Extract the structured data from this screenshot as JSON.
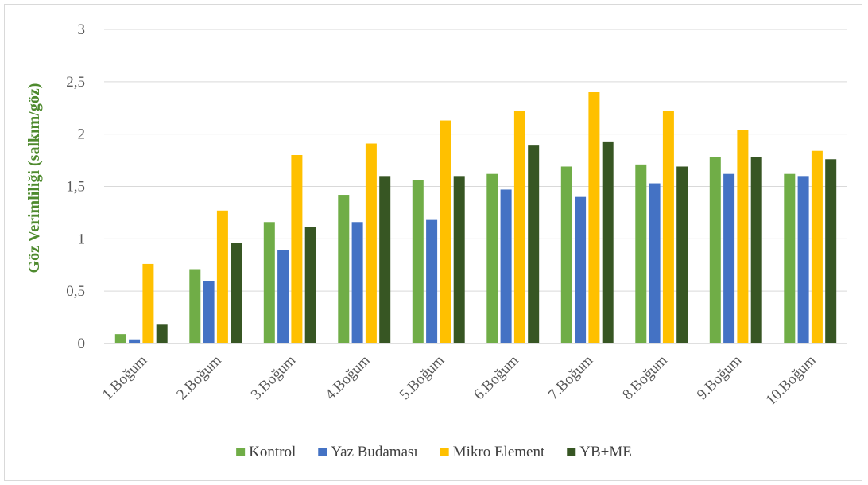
{
  "chart_data": {
    "type": "bar",
    "title": "",
    "xlabel": "",
    "ylabel": "Göz Verimliliği (salkım/göz)",
    "ylim": [
      0,
      3
    ],
    "yticks": [
      "0",
      "0,5",
      "1",
      "1,5",
      "2",
      "2,5",
      "3"
    ],
    "ytick_values": [
      0,
      0.5,
      1,
      1.5,
      2,
      2.5,
      3
    ],
    "grid": true,
    "legend_position": "bottom",
    "categories": [
      "1.Boğum",
      "2.Boğum",
      "3.Boğum",
      "4.Boğum",
      "5.Boğum",
      "6.Boğum",
      "7.Boğum",
      "8.Boğum",
      "9.Boğum",
      "10.Boğum"
    ],
    "series": [
      {
        "name": "Kontrol",
        "color": "#70ad47",
        "values": [
          0.09,
          0.71,
          1.16,
          1.42,
          1.56,
          1.62,
          1.69,
          1.71,
          1.78,
          1.62
        ]
      },
      {
        "name": "Yaz Budaması",
        "color": "#4472c4",
        "values": [
          0.04,
          0.6,
          0.89,
          1.16,
          1.18,
          1.47,
          1.4,
          1.53,
          1.62,
          1.6
        ]
      },
      {
        "name": "Mikro Element",
        "color": "#ffc000",
        "values": [
          0.76,
          1.27,
          1.8,
          1.91,
          2.13,
          2.22,
          2.4,
          2.22,
          2.04,
          1.84
        ]
      },
      {
        "name": "YB+ME",
        "color": "#375623",
        "values": [
          0.18,
          0.96,
          1.11,
          1.6,
          1.6,
          1.89,
          1.93,
          1.69,
          1.78,
          1.76
        ]
      }
    ]
  }
}
